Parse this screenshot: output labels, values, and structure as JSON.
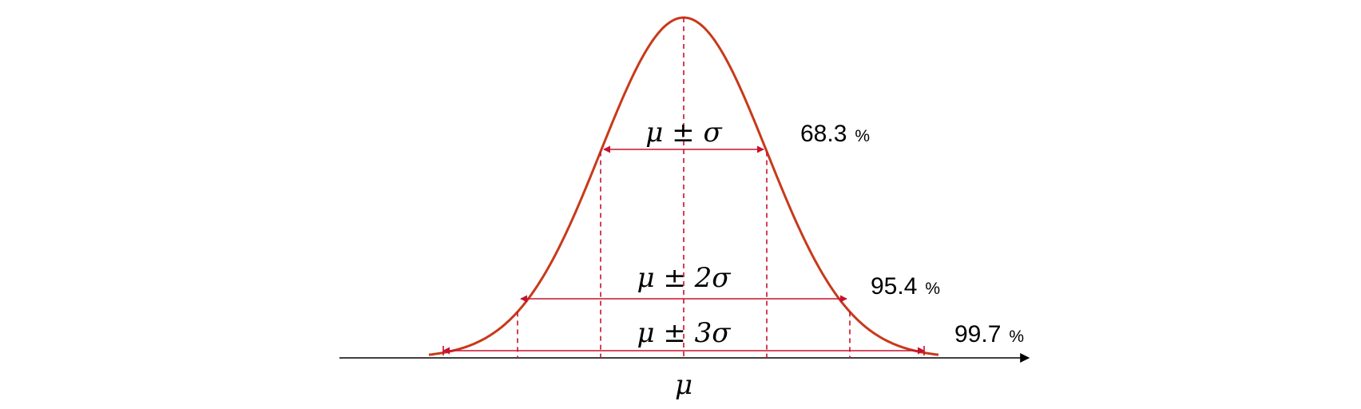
{
  "diagram": {
    "intervals": [
      {
        "label": "μ ± σ",
        "percent": "68.3",
        "percent_unit": "%",
        "k": 1
      },
      {
        "label": "μ ± 2σ",
        "percent": "95.4",
        "percent_unit": "%",
        "k": 2
      },
      {
        "label": "μ ± 3σ",
        "percent": "99.7",
        "percent_unit": "%",
        "k": 3
      }
    ],
    "mean_label": "μ",
    "colors": {
      "curve": "#c8391a",
      "dashes": "#c8102e",
      "arrows": "#c8102e",
      "axis": "#000000",
      "text": "#000000"
    }
  }
}
